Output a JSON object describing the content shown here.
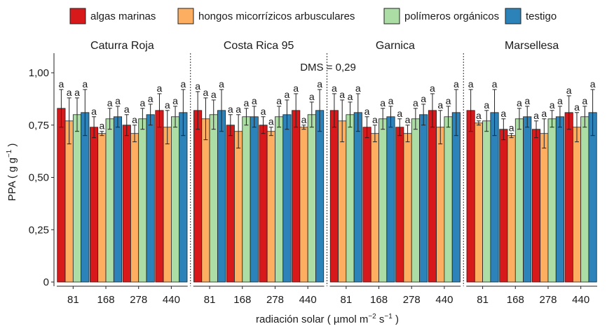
{
  "chart_data": {
    "type": "bar",
    "ylabel_main": "PPA ( g g",
    "ylabel_sup": "−1",
    "ylabel_end": " )",
    "xlabel_main": "radiación solar ( µmol m",
    "xlabel_sup1": "−2",
    "xlabel_mid": " s",
    "xlabel_sup2": "−1",
    "xlabel_end": " )",
    "ylim": [
      0,
      1.1
    ],
    "yticks": [
      {
        "value": 0,
        "label": "0"
      },
      {
        "value": 0.25,
        "label": "0,25"
      },
      {
        "value": 0.5,
        "label": "0,50"
      },
      {
        "value": 0.75,
        "label": "0,75"
      },
      {
        "value": 1.0,
        "label": "1,00"
      }
    ],
    "annotation": "DMS = 0,29",
    "legend_position": "top",
    "legend": [
      {
        "name": "algas marinas",
        "color": "#d7191c"
      },
      {
        "name": "hongos micorrízicos arbusculares",
        "color": "#fdae61"
      },
      {
        "name": "polímeros orgánicos",
        "color": "#abdda4"
      },
      {
        "name": "testigo",
        "color": "#2b83ba"
      }
    ],
    "categories": [
      "81",
      "168",
      "278",
      "440"
    ],
    "letter": "a",
    "panels": [
      {
        "name": "Caturra Roja",
        "values": [
          [
            0.83,
            0.77,
            0.8,
            0.81
          ],
          [
            0.74,
            0.71,
            0.78,
            0.79
          ],
          [
            0.75,
            0.71,
            0.78,
            0.8
          ],
          [
            0.82,
            0.74,
            0.79,
            0.81
          ]
        ],
        "errors": [
          [
            0.09,
            0.11,
            0.08,
            0.11
          ],
          [
            0.05,
            0.01,
            0.05,
            0.05
          ],
          [
            0.05,
            0.04,
            0.05,
            0.05
          ],
          [
            0.08,
            0.08,
            0.05,
            0.11
          ]
        ]
      },
      {
        "name": "Costa Rica 95",
        "values": [
          [
            0.82,
            0.78,
            0.8,
            0.82
          ],
          [
            0.75,
            0.72,
            0.79,
            0.79
          ],
          [
            0.75,
            0.72,
            0.79,
            0.8
          ],
          [
            0.82,
            0.74,
            0.8,
            0.82
          ]
        ],
        "errors": [
          [
            0.09,
            0.1,
            0.07,
            0.1
          ],
          [
            0.05,
            0.08,
            0.04,
            0.05
          ],
          [
            0.04,
            0.02,
            0.05,
            0.07
          ],
          [
            0.08,
            0.01,
            0.06,
            0.1
          ]
        ]
      },
      {
        "name": "Garnica",
        "values": [
          [
            0.82,
            0.77,
            0.8,
            0.81
          ],
          [
            0.74,
            0.71,
            0.78,
            0.79
          ],
          [
            0.74,
            0.71,
            0.78,
            0.8
          ],
          [
            0.82,
            0.74,
            0.79,
            0.81
          ]
        ],
        "errors": [
          [
            0.08,
            0.1,
            0.06,
            0.09
          ],
          [
            0.05,
            0.04,
            0.05,
            0.05
          ],
          [
            0.04,
            0.04,
            0.05,
            0.05
          ],
          [
            0.08,
            0.08,
            0.05,
            0.11
          ]
        ]
      },
      {
        "name": "Marsellesa",
        "values": [
          [
            0.82,
            0.76,
            0.77,
            0.81
          ],
          [
            0.73,
            0.7,
            0.78,
            0.79
          ],
          [
            0.73,
            0.71,
            0.78,
            0.79
          ],
          [
            0.81,
            0.74,
            0.79,
            0.81
          ]
        ],
        "errors": [
          [
            0.1,
            0.01,
            0.05,
            0.11
          ],
          [
            0.05,
            0.01,
            0.05,
            0.05
          ],
          [
            0.04,
            0.07,
            0.04,
            0.05
          ],
          [
            0.08,
            0.07,
            0.05,
            0.11
          ]
        ]
      }
    ]
  }
}
